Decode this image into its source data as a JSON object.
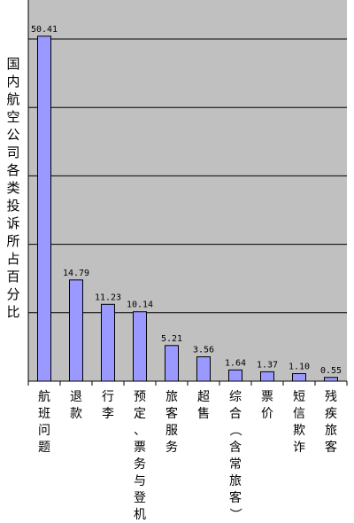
{
  "chart_data": {
    "type": "bar",
    "ylabel": "国内航空公司各类投诉所占百分比",
    "xlabel": "",
    "title": "",
    "categories": [
      "航班问题",
      "退款",
      "行李",
      "预定、票务与登机",
      "旅客服务",
      "超售",
      "综合（含常旅客）",
      "票价",
      "短信欺诈",
      "残疾旅客"
    ],
    "values": [
      50.41,
      14.79,
      11.23,
      10.14,
      5.21,
      3.56,
      1.64,
      1.37,
      1.1,
      0.55
    ],
    "value_labels": [
      "50.41",
      "14.79",
      "11.23",
      "10.14",
      "5.21",
      "3.56",
      "1.64",
      "1.37",
      "1.10",
      "0.55"
    ],
    "ylim": [
      0,
      55
    ],
    "grid": true,
    "colors": {
      "plot_bg": "#c0c0c0",
      "bar_fill": "#9999ff",
      "bar_stroke": "#000000",
      "grid": "#000000"
    }
  }
}
